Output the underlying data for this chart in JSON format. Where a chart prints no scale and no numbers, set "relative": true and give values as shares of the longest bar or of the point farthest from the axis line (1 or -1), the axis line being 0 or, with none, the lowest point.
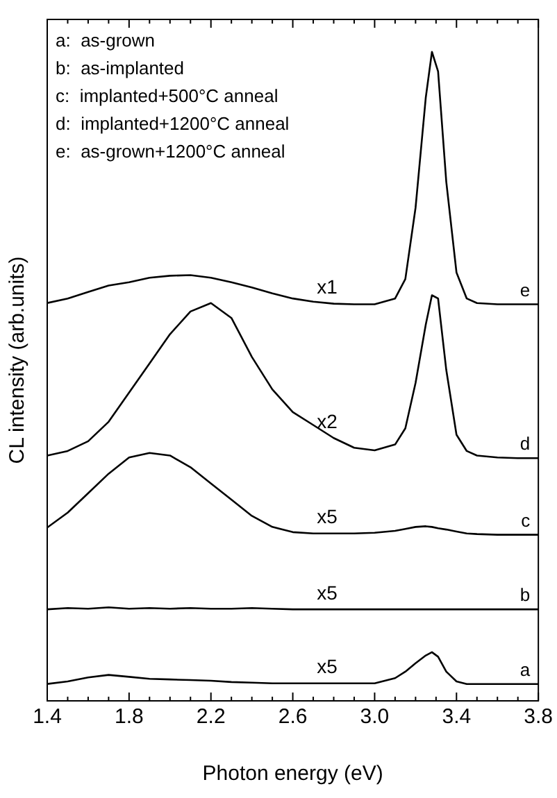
{
  "chart_data": {
    "type": "line",
    "relative": true,
    "xlabel": "Photon energy (eV)",
    "ylabel": "CL intensity (arb.units)",
    "xlim": [
      1.4,
      3.8
    ],
    "xticks": [
      1.4,
      {
        "value": 1.5,
        "label": null
      },
      {
        "value": 1.6,
        "label": null
      },
      {
        "value": 1.7,
        "label": null
      },
      1.8,
      {
        "value": 1.9,
        "label": null
      },
      {
        "value": 2.0,
        "label": null
      },
      {
        "value": 2.1,
        "label": null
      },
      2.2,
      {
        "value": 2.3,
        "label": null
      },
      {
        "value": 2.4,
        "label": null
      },
      {
        "value": 2.5,
        "label": null
      },
      2.6,
      {
        "value": 2.7,
        "label": null
      },
      {
        "value": 2.8,
        "label": null
      },
      {
        "value": 2.9,
        "label": null
      },
      {
        "value": 3.0,
        "label": "3.0"
      },
      {
        "value": 3.1,
        "label": null
      },
      {
        "value": 3.2,
        "label": null
      },
      {
        "value": 3.3,
        "label": null
      },
      3.4,
      {
        "value": 3.5,
        "label": null
      },
      {
        "value": 3.6,
        "label": null
      },
      {
        "value": 3.7,
        "label": null
      },
      3.8
    ],
    "x": [
      1.4,
      1.5,
      1.6,
      1.7,
      1.8,
      1.9,
      2.0,
      2.1,
      2.2,
      2.3,
      2.4,
      2.5,
      2.6,
      2.7,
      2.8,
      2.9,
      3.0,
      3.1,
      3.15,
      3.2,
      3.25,
      3.28,
      3.31,
      3.35,
      3.4,
      3.45,
      3.5,
      3.6,
      3.7,
      3.8
    ],
    "series": [
      {
        "name": "a",
        "color": "#000000",
        "values": [
          0.026,
          0.03,
          0.036,
          0.04,
          0.037,
          0.034,
          0.033,
          0.032,
          0.031,
          0.029,
          0.028,
          0.027,
          0.027,
          0.027,
          0.027,
          0.027,
          0.027,
          0.035,
          0.045,
          0.058,
          0.07,
          0.075,
          0.068,
          0.045,
          0.03,
          0.026,
          0.026,
          0.026,
          0.026,
          0.026
        ]
      },
      {
        "name": "b",
        "color": "#000000",
        "values": [
          0.141,
          0.143,
          0.142,
          0.144,
          0.142,
          0.143,
          0.142,
          0.143,
          0.142,
          0.142,
          0.143,
          0.142,
          0.141,
          0.141,
          0.141,
          0.141,
          0.141,
          0.141,
          0.141,
          0.141,
          0.141,
          0.141,
          0.141,
          0.141,
          0.141,
          0.141,
          0.141,
          0.141,
          0.141,
          0.141
        ]
      },
      {
        "name": "c",
        "color": "#000000",
        "values": [
          0.267,
          0.29,
          0.32,
          0.35,
          0.375,
          0.382,
          0.378,
          0.36,
          0.335,
          0.31,
          0.285,
          0.268,
          0.26,
          0.258,
          0.258,
          0.258,
          0.259,
          0.262,
          0.265,
          0.268,
          0.269,
          0.268,
          0.266,
          0.264,
          0.261,
          0.258,
          0.257,
          0.256,
          0.256,
          0.256
        ]
      },
      {
        "name": "d",
        "color": "#000000",
        "values": [
          0.378,
          0.385,
          0.4,
          0.43,
          0.475,
          0.52,
          0.565,
          0.6,
          0.613,
          0.59,
          0.53,
          0.48,
          0.445,
          0.425,
          0.405,
          0.39,
          0.386,
          0.395,
          0.42,
          0.49,
          0.58,
          0.625,
          0.62,
          0.51,
          0.41,
          0.385,
          0.378,
          0.375,
          0.374,
          0.374
        ]
      },
      {
        "name": "e",
        "color": "#000000",
        "values": [
          0.613,
          0.62,
          0.63,
          0.64,
          0.645,
          0.652,
          0.655,
          0.656,
          0.652,
          0.645,
          0.637,
          0.628,
          0.62,
          0.615,
          0.612,
          0.611,
          0.611,
          0.62,
          0.65,
          0.76,
          0.93,
          1.0,
          0.97,
          0.8,
          0.66,
          0.62,
          0.613,
          0.611,
          0.611,
          0.611
        ]
      }
    ],
    "annotations": [
      "a:  as-grown",
      "b:  as-implanted",
      "c:  implanted+500°C anneal",
      "d:  implanted+1200°C anneal",
      "e:  as-grown+1200°C anneal",
      "x1",
      "x2",
      "x5",
      "x5",
      "x5"
    ],
    "legend": false,
    "grid": false,
    "marker": "none",
    "line_style": "solid"
  }
}
